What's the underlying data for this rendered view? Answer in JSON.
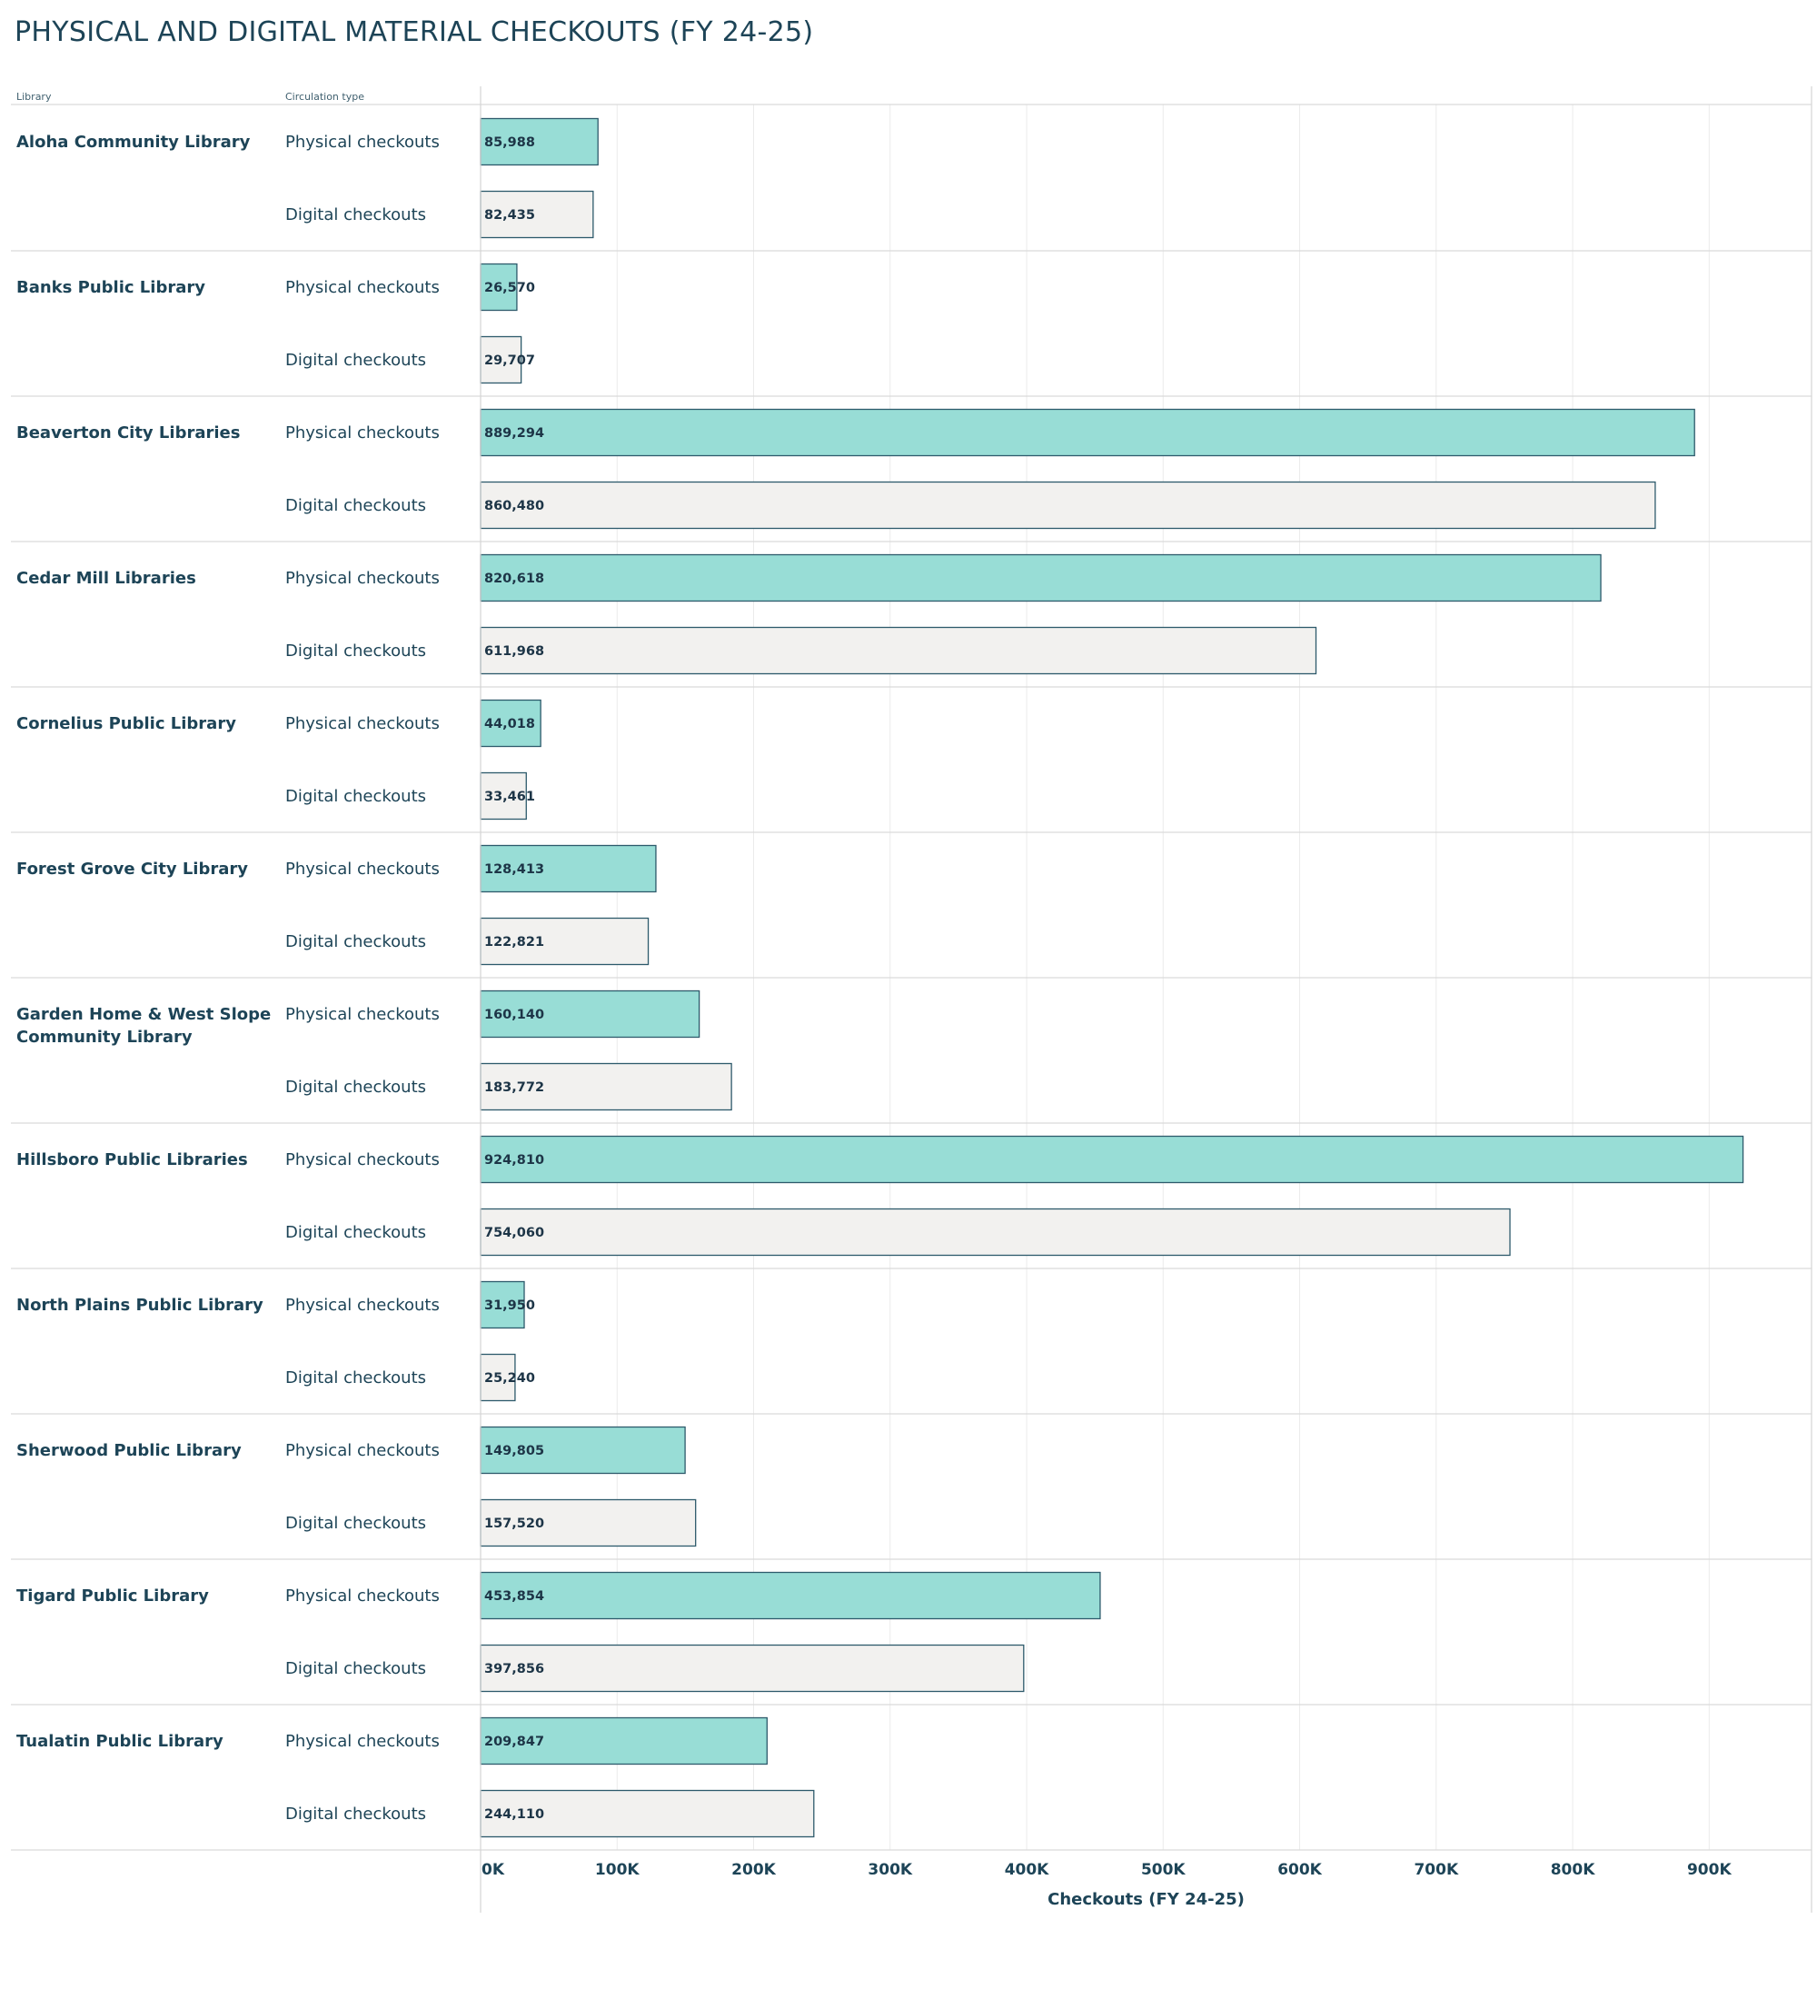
{
  "title": "PHYSICAL AND DIGITAL MATERIAL CHECKOUTS (FY 24-25)",
  "colors": {
    "physical": "#98ddd6",
    "digital": "#f2f1ef",
    "bar_stroke": "#2d5a6b",
    "text": "#1d4457"
  },
  "chart_data": {
    "type": "bar",
    "orientation": "horizontal",
    "title": "PHYSICAL AND DIGITAL MATERIAL CHECKOUTS (FY 24-25)",
    "row_headers": [
      "Library",
      "Circulation type"
    ],
    "xlabel": "Checkouts (FY 24-25)",
    "xlim": [
      0,
      975000
    ],
    "xticks": [
      0,
      100000,
      200000,
      300000,
      400000,
      500000,
      600000,
      700000,
      800000,
      900000
    ],
    "xtick_labels": [
      "0K",
      "100K",
      "200K",
      "300K",
      "400K",
      "500K",
      "600K",
      "700K",
      "800K",
      "900K"
    ],
    "grid": true,
    "categories": [
      "Aloha Community Library",
      "Banks Public Library",
      "Beaverton City Libraries",
      "Cedar Mill Libraries",
      "Cornelius Public Library",
      "Forest Grove City Library",
      "Garden Home & West Slope Community Library",
      "Hillsboro Public Libraries",
      "North Plains Public Library",
      "Sherwood Public Library",
      "Tigard Public Library",
      "Tualatin Public Library"
    ],
    "category_lines": [
      [
        "Aloha Community Library"
      ],
      [
        "Banks Public Library"
      ],
      [
        "Beaverton City Libraries"
      ],
      [
        "Cedar Mill Libraries"
      ],
      [
        "Cornelius Public Library"
      ],
      [
        "Forest Grove City Library"
      ],
      [
        "Garden Home & West Slope",
        "Community Library"
      ],
      [
        "Hillsboro Public Libraries"
      ],
      [
        "North Plains Public Library"
      ],
      [
        "Sherwood Public Library"
      ],
      [
        "Tigard Public Library"
      ],
      [
        "Tualatin Public Library"
      ]
    ],
    "series": [
      {
        "name": "Physical checkouts",
        "values": [
          85988,
          26570,
          889294,
          820618,
          44018,
          128413,
          160140,
          924810,
          31950,
          149805,
          453854,
          209847
        ],
        "labels": [
          "85,988",
          "26,570",
          "889,294",
          "820,618",
          "44,018",
          "128,413",
          "160,140",
          "924,810",
          "31,950",
          "149,805",
          "453,854",
          "209,847"
        ]
      },
      {
        "name": "Digital checkouts",
        "values": [
          82435,
          29707,
          860480,
          611968,
          33461,
          122821,
          183772,
          754060,
          25240,
          157520,
          397856,
          244110
        ],
        "labels": [
          "82,435",
          "29,707",
          "860,480",
          "611,968",
          "33,461",
          "122,821",
          "183,772",
          "754,060",
          "25,240",
          "157,520",
          "397,856",
          "244,110"
        ]
      }
    ]
  }
}
